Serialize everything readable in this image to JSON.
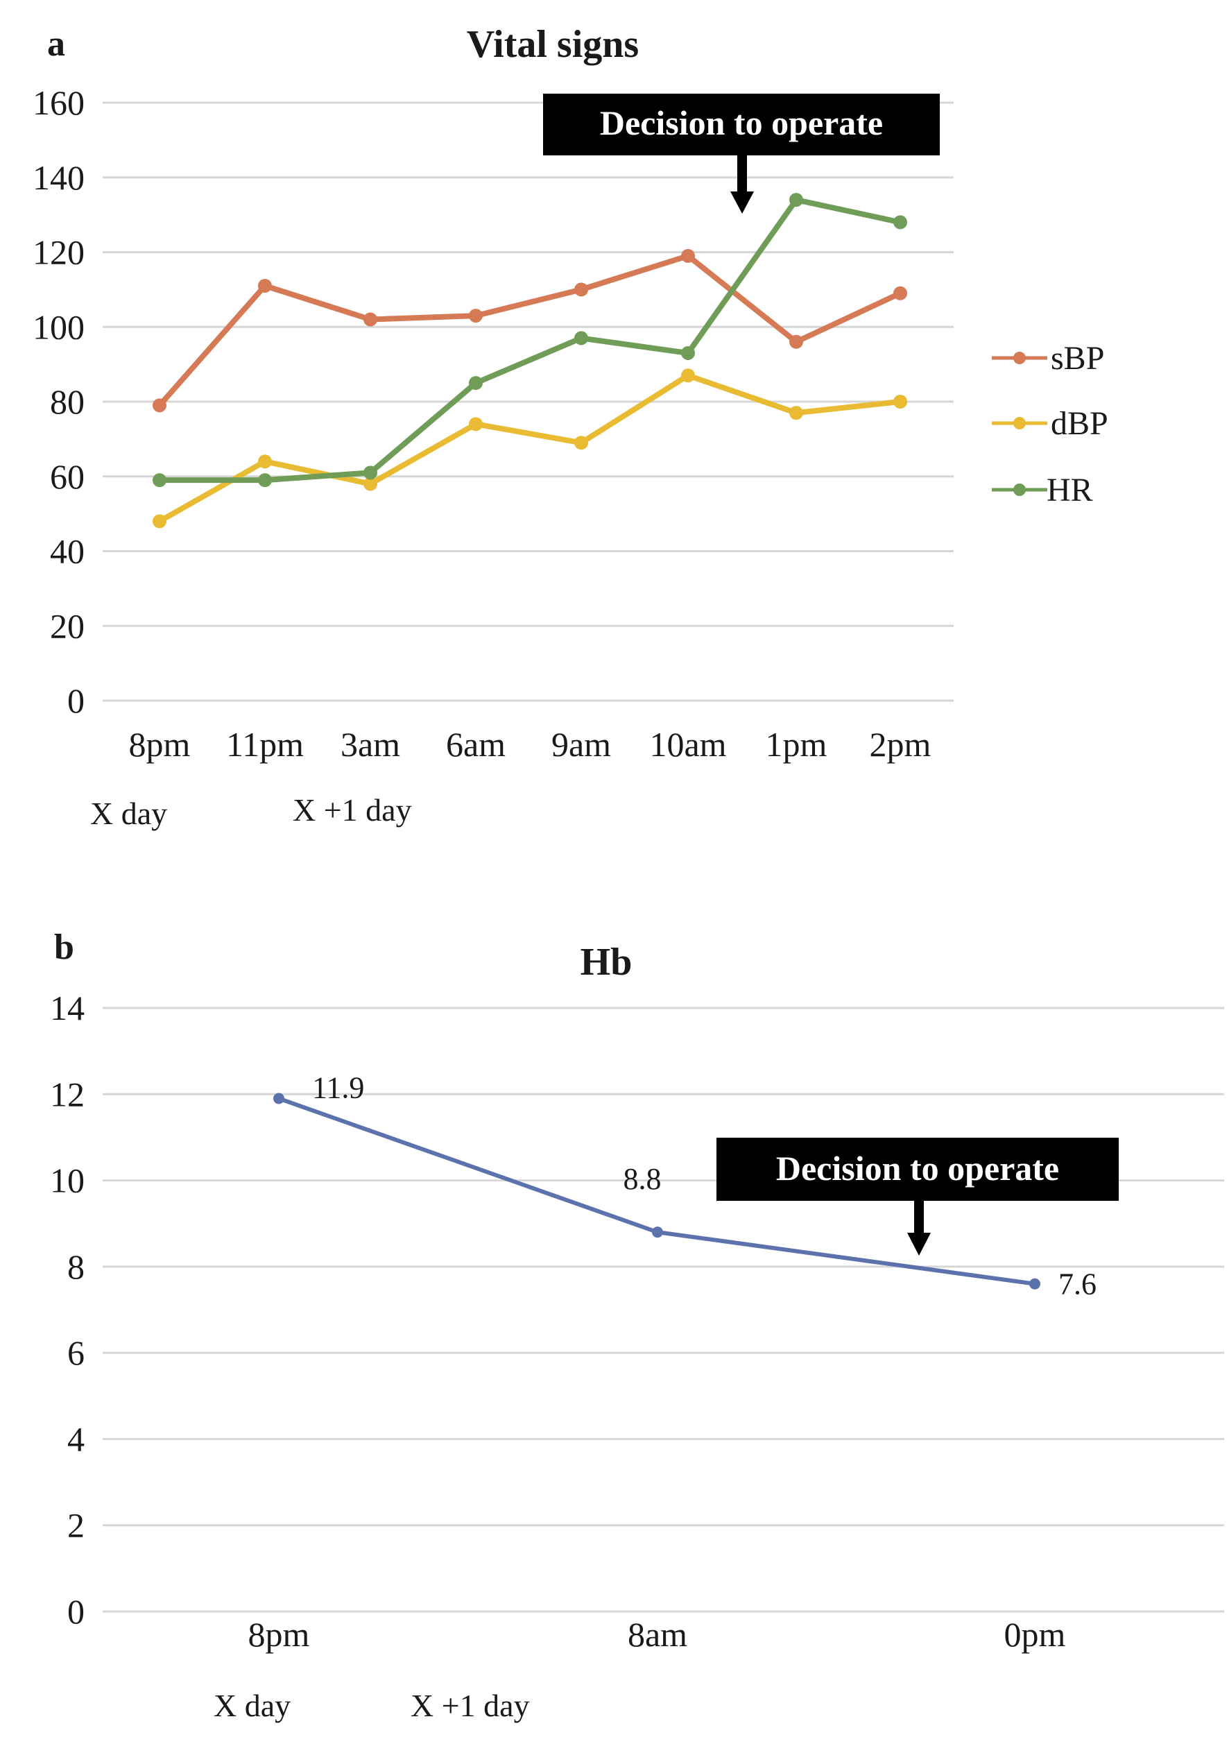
{
  "chart_data": [
    {
      "panel": "a",
      "type": "line",
      "title": "Vital signs",
      "categories": [
        "8pm",
        "11pm",
        "3am",
        "6am",
        "9am",
        "10am",
        "1pm",
        "2pm"
      ],
      "y_ticks": [
        "0",
        "20",
        "40",
        "60",
        "80",
        "100",
        "120",
        "140",
        "160"
      ],
      "ylim": [
        0,
        160
      ],
      "grid": true,
      "legend_position": "right",
      "series": [
        {
          "name": "sBP",
          "color": "#d67a56",
          "values": [
            79,
            111,
            102,
            103,
            110,
            119,
            96,
            109
          ]
        },
        {
          "name": "dBP",
          "color": "#e8bb33",
          "values": [
            48,
            64,
            58,
            74,
            69,
            87,
            77,
            80
          ]
        },
        {
          "name": "HR",
          "color": "#6f9c56",
          "values": [
            59,
            59,
            61,
            85,
            97,
            93,
            134,
            128
          ]
        }
      ],
      "day_labels": [
        "X day",
        "X +1 day"
      ],
      "annotation": "Decision to operate"
    },
    {
      "panel": "b",
      "type": "line",
      "title": "Hb",
      "categories": [
        "8pm",
        "8am",
        "0pm"
      ],
      "y_ticks": [
        "0",
        "2",
        "4",
        "6",
        "8",
        "10",
        "12",
        "14"
      ],
      "ylim": [
        0,
        14
      ],
      "grid": true,
      "series": [
        {
          "color": "#5b72ad",
          "values": [
            11.9,
            8.8,
            7.6
          ],
          "data_labels": [
            "11.9",
            "8.8",
            "7.6"
          ]
        }
      ],
      "day_labels": [
        "X day",
        "X +1 day"
      ],
      "annotation": "Decision to operate"
    }
  ]
}
